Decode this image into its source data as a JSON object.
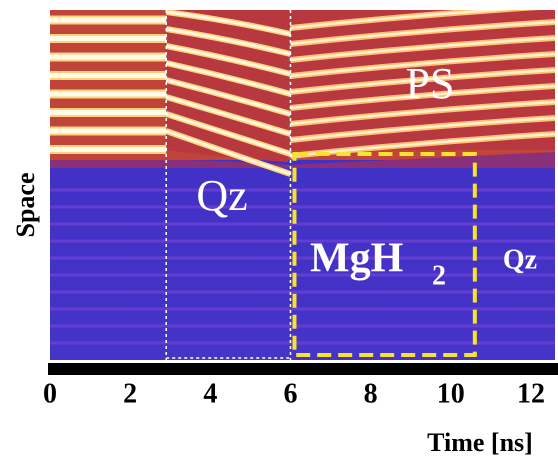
{
  "chart_data": {
    "type": "image",
    "xlabel": "Time [ns]",
    "ylabel": "Space",
    "xlim": [
      0,
      12.6
    ],
    "xticks": [
      0,
      2,
      4,
      6,
      8,
      10,
      12
    ],
    "dashed_lines": [
      2.9,
      6.0
    ],
    "box": [
      6.1,
      10.6
    ],
    "annotations": {
      "ps": "PS",
      "qz_left": "Qz",
      "qz_right": "Qz",
      "mgh": "MgH",
      "mgh_sub": "2"
    }
  }
}
